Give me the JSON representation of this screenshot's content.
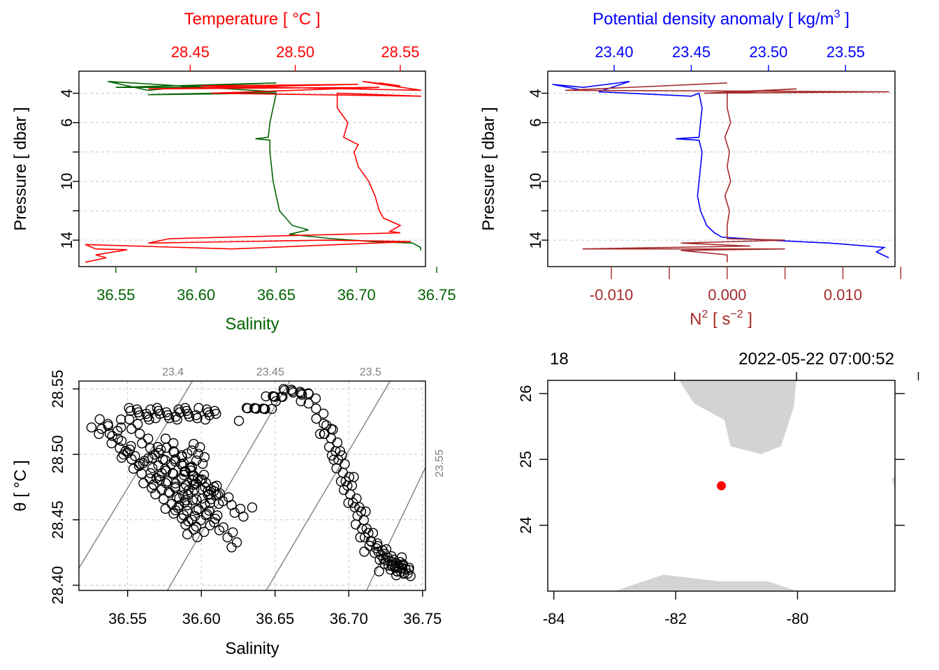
{
  "colors": {
    "temperature": "#ff0000",
    "salinity": "#006400",
    "density": "#0000ff",
    "n2": "#a52a2a",
    "land": "#d3d3d3",
    "station": "#ff0000",
    "isopycnal": "#808080",
    "grid": "#c8c8c8"
  },
  "chart_data": [
    {
      "type": "line",
      "panel": "profile-temperature-salinity",
      "title_top": "Temperature [ °C ]",
      "xlabel_bottom": "Salinity",
      "ylabel_left": "Pressure [ dbar ]",
      "top_axis": {
        "range": [
          28.397,
          28.562
        ],
        "ticks": [
          "28.45",
          "28.50",
          "28.55"
        ],
        "tick_values": [
          28.45,
          28.5,
          28.55
        ]
      },
      "bottom_axis": {
        "range": [
          36.527,
          36.743
        ],
        "ticks": [
          "36.55",
          "36.60",
          "36.65",
          "36.70",
          "36.75"
        ],
        "tick_values": [
          36.55,
          36.6,
          36.65,
          36.7,
          36.75
        ]
      },
      "left_axis": {
        "range": [
          15.8,
          2.5
        ],
        "ticks": [
          "4",
          "6",
          "10",
          "14"
        ],
        "tick_values": [
          4,
          6,
          10,
          14
        ],
        "grid_values": [
          4,
          6,
          8,
          10,
          12,
          14
        ]
      },
      "series": [
        {
          "name": "Temperature",
          "axis": "top",
          "points": [
            [
              28.54,
              3.3
            ],
            [
              28.55,
              3.5
            ],
            [
              28.532,
              3.2
            ],
            [
              28.56,
              3.8
            ],
            [
              28.455,
              3.5
            ],
            [
              28.53,
              3.4
            ],
            [
              28.43,
              3.7
            ],
            [
              28.54,
              3.6
            ],
            [
              28.46,
              4.0
            ],
            [
              28.56,
              4.2
            ],
            [
              28.52,
              4.0
            ],
            [
              28.52,
              5.0
            ],
            [
              28.525,
              6.0
            ],
            [
              28.523,
              7.0
            ],
            [
              28.53,
              7.5
            ],
            [
              28.528,
              8.0
            ],
            [
              28.53,
              9.0
            ],
            [
              28.535,
              10.0
            ],
            [
              28.538,
              11.0
            ],
            [
              28.54,
              12.0
            ],
            [
              28.542,
              12.5
            ],
            [
              28.55,
              13.0
            ],
            [
              28.545,
              13.4
            ],
            [
              28.55,
              13.5
            ],
            [
              28.44,
              13.9
            ],
            [
              28.43,
              14.2
            ],
            [
              28.515,
              14.0
            ],
            [
              28.555,
              14.1
            ],
            [
              28.47,
              14.6
            ],
            [
              28.4,
              14.3
            ],
            [
              28.405,
              14.6
            ],
            [
              28.42,
              14.65
            ],
            [
              28.405,
              15.0
            ],
            [
              28.41,
              15.2
            ],
            [
              28.4,
              15.5
            ]
          ]
        },
        {
          "name": "Salinity",
          "axis": "bottom",
          "points": [
            [
              36.64,
              3.6
            ],
            [
              36.55,
              3.6
            ],
            [
              36.65,
              3.3
            ],
            [
              36.6,
              3.5
            ],
            [
              36.57,
              3.8
            ],
            [
              36.545,
              3.2
            ],
            [
              36.65,
              3.9
            ],
            [
              36.57,
              4.1
            ],
            [
              36.645,
              4.0
            ],
            [
              36.65,
              4.0
            ],
            [
              36.648,
              5.0
            ],
            [
              36.646,
              6.0
            ],
            [
              36.645,
              7.0
            ],
            [
              36.637,
              7.1
            ],
            [
              36.646,
              7.2
            ],
            [
              36.646,
              8.0
            ],
            [
              36.647,
              9.0
            ],
            [
              36.648,
              10.0
            ],
            [
              36.65,
              11.0
            ],
            [
              36.652,
              12.0
            ],
            [
              36.656,
              12.5
            ],
            [
              36.66,
              13.0
            ],
            [
              36.67,
              13.3
            ],
            [
              36.658,
              13.6
            ],
            [
              36.685,
              13.9
            ],
            [
              36.71,
              14.1
            ],
            [
              36.735,
              14.2
            ],
            [
              36.74,
              14.5
            ],
            [
              36.74,
              14.7
            ]
          ]
        }
      ]
    },
    {
      "type": "line",
      "panel": "profile-density-n2",
      "title_top": "Potential density anomaly [ kg/m",
      "title_top_sup": "3",
      "title_top_end": " ]",
      "xlabel_bottom": "N",
      "xlabel_bottom_sup": "2",
      "xlabel_bottom_mid": " [ s",
      "xlabel_bottom_sup2": "−2",
      "xlabel_bottom_end": " ]",
      "ylabel_left": "Pressure [ dbar ]",
      "top_axis": {
        "range": [
          23.357,
          23.582
        ],
        "ticks": [
          "23.40",
          "23.45",
          "23.50",
          "23.55"
        ],
        "tick_values": [
          23.4,
          23.45,
          23.5,
          23.55
        ]
      },
      "bottom_axis": {
        "range": [
          -0.0155,
          0.0145
        ],
        "ticks": [
          "-0.010",
          "0.000",
          "0.010"
        ],
        "tick_values": [
          -0.01,
          0.0,
          0.01
        ],
        "minor_tick_values": [
          -0.005,
          0.005,
          0.015
        ]
      },
      "left_axis": {
        "range": [
          15.8,
          2.5
        ],
        "ticks": [
          "4",
          "6",
          "10",
          "14"
        ],
        "tick_values": [
          4,
          6,
          10,
          14
        ],
        "grid_values": [
          4,
          6,
          8,
          10,
          12,
          14
        ]
      },
      "series": [
        {
          "name": "Potential density anomaly",
          "axis": "top",
          "points": [
            [
              23.38,
              3.8
            ],
            [
              23.36,
              3.4
            ],
            [
              23.38,
              3.6
            ],
            [
              23.41,
              3.2
            ],
            [
              23.39,
              3.9
            ],
            [
              23.45,
              4.2
            ],
            [
              23.455,
              4.0
            ],
            [
              23.457,
              5.0
            ],
            [
              23.456,
              6.0
            ],
            [
              23.455,
              7.0
            ],
            [
              23.44,
              7.1
            ],
            [
              23.455,
              7.2
            ],
            [
              23.457,
              8.0
            ],
            [
              23.456,
              9.0
            ],
            [
              23.455,
              10.0
            ],
            [
              23.454,
              11.0
            ],
            [
              23.456,
              12.0
            ],
            [
              23.46,
              13.0
            ],
            [
              23.465,
              13.5
            ],
            [
              23.47,
              13.8
            ],
            [
              23.5,
              14.0
            ],
            [
              23.54,
              14.2
            ],
            [
              23.575,
              14.5
            ],
            [
              23.57,
              14.8
            ],
            [
              23.578,
              15.2
            ]
          ]
        },
        {
          "name": "N2",
          "axis": "bottom",
          "points": [
            [
              0.0,
              3.3
            ],
            [
              -0.014,
              3.8
            ],
            [
              0.014,
              3.9
            ],
            [
              -0.002,
              4.0
            ],
            [
              0.006,
              3.7
            ],
            [
              0.0,
              4.0
            ],
            [
              0.0,
              5.0
            ],
            [
              0.0003,
              6.0
            ],
            [
              -0.0002,
              7.0
            ],
            [
              0.0002,
              8.0
            ],
            [
              0.0,
              9.0
            ],
            [
              0.0003,
              10.0
            ],
            [
              -0.0002,
              11.0
            ],
            [
              0.0002,
              12.0
            ],
            [
              0.0,
              13.0
            ],
            [
              0.0,
              13.9
            ],
            [
              0.005,
              14.0
            ],
            [
              -0.004,
              14.2
            ],
            [
              0.002,
              14.4
            ],
            [
              -0.0125,
              14.6
            ],
            [
              0.005,
              14.6
            ],
            [
              -0.004,
              14.7
            ],
            [
              0.0,
              15.0
            ],
            [
              0.0,
              15.5
            ]
          ]
        }
      ]
    },
    {
      "type": "scatter",
      "panel": "ts-diagram",
      "xlabel": "Salinity",
      "ylabel": "θ [ °C ]",
      "xlim": [
        36.517,
        36.752
      ],
      "ylim": [
        28.396,
        28.556
      ],
      "xticks": [
        "36.55",
        "36.60",
        "36.65",
        "36.70",
        "36.75"
      ],
      "xtick_values": [
        36.55,
        36.6,
        36.65,
        36.7,
        36.75
      ],
      "yticks": [
        "28.40",
        "28.45",
        "28.50",
        "28.55"
      ],
      "ytick_values": [
        28.4,
        28.45,
        28.5,
        28.55
      ],
      "isopycnal_labels": [
        "23.4",
        "23.45",
        "23.5",
        "23.55"
      ],
      "isopycnals": [
        {
          "label": "23.4",
          "points": [
            [
              36.517,
              28.413
            ],
            [
              36.594,
              28.556
            ]
          ]
        },
        {
          "label": "23.45",
          "points": [
            [
              36.577,
              28.396
            ],
            [
              36.66,
              28.556
            ]
          ]
        },
        {
          "label": "23.5",
          "points": [
            [
              36.644,
              28.396
            ],
            [
              36.728,
              28.556
            ]
          ]
        },
        {
          "label": "23.55",
          "points": [
            [
              36.712,
              28.396
            ],
            [
              36.752,
              28.49
            ]
          ]
        }
      ],
      "clusters": [
        {
          "from": [
            36.53,
            28.525
          ],
          "to": [
            36.595,
            28.44
          ],
          "n": 34
        },
        {
          "from": [
            36.535,
            28.52
          ],
          "to": [
            36.625,
            28.43
          ],
          "n": 34
        },
        {
          "from": [
            36.55,
            28.525
          ],
          "to": [
            36.61,
            28.45
          ],
          "n": 30
        },
        {
          "from": [
            36.55,
            28.531
          ],
          "to": [
            36.61,
            28.531
          ],
          "n": 34
        },
        {
          "from": [
            36.575,
            28.51
          ],
          "to": [
            36.61,
            28.46
          ],
          "n": 22
        },
        {
          "from": [
            36.585,
            28.49
          ],
          "to": [
            36.63,
            28.455
          ],
          "n": 20
        },
        {
          "from": [
            36.57,
            28.49
          ],
          "to": [
            36.6,
            28.44
          ],
          "n": 18
        },
        {
          "from": [
            36.58,
            28.5
          ],
          "to": [
            36.61,
            28.47
          ],
          "n": 16
        },
        {
          "from": [
            36.595,
            28.505
          ],
          "to": [
            36.6,
            28.495
          ],
          "n": 8
        },
        {
          "from": [
            36.63,
            28.53
          ],
          "to": [
            36.655,
            28.545
          ],
          "n": 16
        },
        {
          "from": [
            36.655,
            28.545
          ],
          "to": [
            36.67,
            28.55
          ],
          "n": 10
        },
        {
          "from": [
            36.672,
            28.545
          ],
          "to": [
            36.685,
            28.52
          ],
          "n": 10
        },
        {
          "from": [
            36.685,
            28.52
          ],
          "to": [
            36.715,
            28.43
          ],
          "n": 42
        },
        {
          "from": [
            36.715,
            28.43
          ],
          "to": [
            36.74,
            28.41
          ],
          "n": 30
        },
        {
          "from": [
            36.725,
            28.415
          ],
          "to": [
            36.74,
            28.41
          ],
          "n": 16
        }
      ]
    },
    {
      "type": "map",
      "panel": "station-map",
      "top_left_label": "18",
      "top_right_label": "2022-05-22 07:00:52",
      "xlim": [
        -84.1,
        -78.4
      ],
      "ylim": [
        23.0,
        26.2
      ],
      "xticks": [
        "-84",
        "-82",
        "-80"
      ],
      "xtick_values": [
        -84,
        -82,
        -80
      ],
      "yticks": [
        "24",
        "25",
        "26"
      ],
      "ytick_values": [
        24,
        25,
        26
      ],
      "station": {
        "lon": -81.25,
        "lat": 24.6
      },
      "land": [
        [
          [
            -81.94,
            26.2
          ],
          [
            -80.02,
            26.2
          ],
          [
            -80.06,
            25.8
          ],
          [
            -80.27,
            25.2
          ],
          [
            -80.6,
            25.08
          ],
          [
            -81.1,
            25.2
          ],
          [
            -81.2,
            25.6
          ],
          [
            -81.7,
            25.85
          ]
        ],
        [
          [
            -83.0,
            23.0
          ],
          [
            -82.2,
            23.25
          ],
          [
            -81.3,
            23.15
          ],
          [
            -80.5,
            23.15
          ],
          [
            -80.0,
            23.0
          ]
        ],
        [
          [
            -78.45,
            24.7
          ],
          [
            -78.4,
            24.75
          ],
          [
            -78.4,
            24.55
          ]
        ]
      ]
    }
  ]
}
